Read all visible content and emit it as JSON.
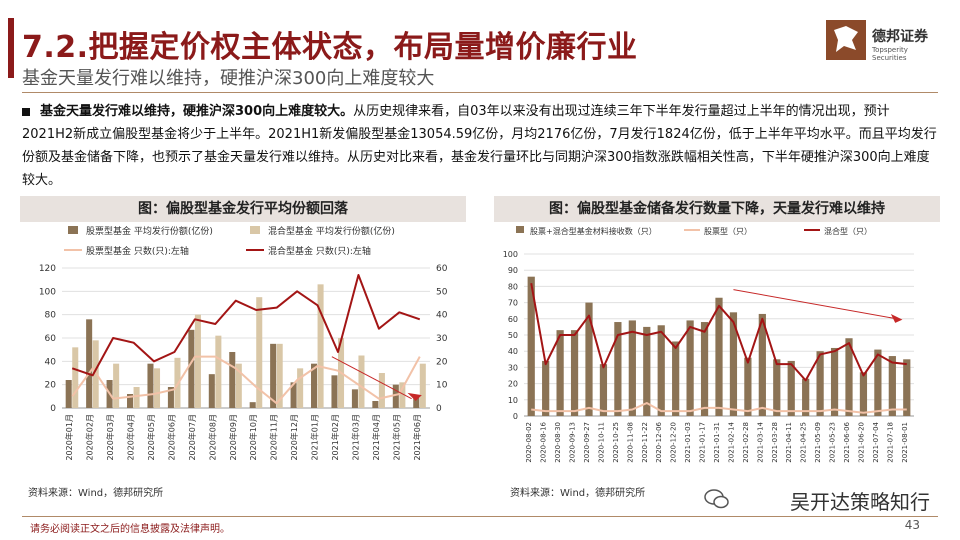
{
  "header": {
    "title": "7.2.把握定价权主体状态，布局量增价廉行业",
    "subtitle": "基金天量发行难以维持，硬推沪深300向上难度较大"
  },
  "logo": {
    "cn": "德邦证券",
    "en": "Topsperity Securities"
  },
  "bullet": {
    "bold": "基金天量发行难以维持，硬推沪深300向上难度较大。",
    "text": "从历史规律来看，自03年以来没有出现过连续三年下半年发行量超过上半年的情况出现，预计2021H2新成立偏股型基金将少于上半年。2021H1新发偏股型基金13054.59亿份，月均2176亿份，7月发行1824亿份，低于上半年平均水平。而且平均发行份额及基金储备下降，也预示了基金天量发行难以维持。从历史对比来看，基金发行量环比与同期沪深300指数涨跌幅相关性高，下半年硬推沪深300向上难度较大。"
  },
  "chart_data": [
    {
      "type": "bar",
      "title": "图：偏股型基金发行平均份额回落",
      "categories": [
        "2020年01月",
        "2020年02月",
        "2020年03月",
        "2020年04月",
        "2020年05月",
        "2020年06月",
        "2020年07月",
        "2020年08月",
        "2020年09月",
        "2020年10月",
        "2020年11月",
        "2020年12月",
        "2021年01月",
        "2021年02月",
        "2021年03月",
        "2021年04月",
        "2021年05月",
        "2021年06月"
      ],
      "series": [
        {
          "name": "股票型基金 平均发行份额(亿份)",
          "kind": "bar",
          "axis": "left",
          "color": "#8b7355",
          "values": [
            24,
            76,
            24,
            12,
            38,
            18,
            67,
            29,
            48,
            5,
            55,
            22,
            38,
            28,
            16,
            6,
            20,
            10
          ]
        },
        {
          "name": "混合型基金 平均发行份额(亿份)",
          "kind": "bar",
          "axis": "left",
          "color": "#d9c7a7",
          "values": [
            52,
            58,
            38,
            18,
            34,
            43,
            80,
            62,
            38,
            95,
            55,
            34,
            106,
            60,
            45,
            30,
            22,
            38
          ]
        },
        {
          "name": "股票型基金 只数(只):左轴",
          "kind": "line",
          "axis": "right",
          "color": "#f2c2a8",
          "values": [
            5,
            17,
            4,
            5,
            6,
            8,
            22,
            22,
            17,
            9,
            2,
            12,
            18,
            16,
            10,
            4,
            6,
            22
          ]
        },
        {
          "name": "混合型基金 只数(只):左轴",
          "kind": "line",
          "axis": "right",
          "color": "#a31515",
          "values": [
            17,
            14,
            30,
            28,
            20,
            24,
            38,
            36,
            46,
            42,
            43,
            50,
            44,
            24,
            57,
            34,
            41,
            38
          ]
        }
      ],
      "ylim_left": [
        0,
        120
      ],
      "yticks_left": [
        "0",
        "20",
        "40",
        "60",
        "80",
        "100",
        "120"
      ],
      "ylim_right": [
        0,
        60
      ],
      "yticks_right": [
        "0",
        "10",
        "20",
        "30",
        "40",
        "50",
        "60"
      ],
      "source": "资料来源：Wind，德邦研究所"
    },
    {
      "type": "bar",
      "title": "图：偏股型基金储备发行数量下降，天量发行难以维持",
      "categories": [
        "2020-08-02",
        "2020-08-16",
        "2020-08-30",
        "2020-09-13",
        "2020-09-27",
        "2020-10-11",
        "2020-10-25",
        "2020-11-08",
        "2020-11-22",
        "2020-12-06",
        "2020-12-20",
        "2021-01-03",
        "2021-01-17",
        "2021-01-31",
        "2021-02-14",
        "2021-02-28",
        "2021-03-14",
        "2021-03-28",
        "2021-04-11",
        "2021-04-25",
        "2021-05-09",
        "2021-05-23",
        "2021-06-06",
        "2021-06-20",
        "2021-07-04",
        "2021-07-18",
        "2021-08-01"
      ],
      "series": [
        {
          "name": "股票+混合型基金材料接收数（只）",
          "kind": "bar",
          "color": "#8b7355",
          "values": [
            86,
            34,
            53,
            53,
            70,
            32,
            58,
            59,
            55,
            56,
            46,
            59,
            58,
            73,
            64,
            36,
            63,
            35,
            34,
            23,
            40,
            42,
            48,
            27,
            41,
            37,
            35
          ]
        },
        {
          "name": "股票型（只）",
          "kind": "line",
          "color": "#f2c2a8",
          "values": [
            4,
            3,
            3,
            3,
            5,
            3,
            3,
            4,
            8,
            3,
            3,
            3,
            5,
            5,
            4,
            3,
            5,
            3,
            3,
            3,
            3,
            4,
            3,
            2,
            3,
            4,
            4
          ]
        },
        {
          "name": "混合型（只）",
          "kind": "line",
          "color": "#a31515",
          "values": [
            82,
            32,
            50,
            50,
            62,
            30,
            50,
            52,
            50,
            52,
            42,
            55,
            52,
            68,
            58,
            33,
            60,
            32,
            32,
            22,
            38,
            40,
            45,
            25,
            38,
            33,
            32
          ]
        }
      ],
      "ylim": [
        0,
        100
      ],
      "yticks": [
        "0",
        "10",
        "20",
        "30",
        "40",
        "50",
        "60",
        "70",
        "80",
        "90",
        "100"
      ],
      "source": "资料来源：Wind，德邦研究所"
    }
  ],
  "footer": {
    "note": "请务必阅读正文之后的信息披露及法律声明。",
    "page": "43"
  },
  "watermark": "吴开达策略知行"
}
